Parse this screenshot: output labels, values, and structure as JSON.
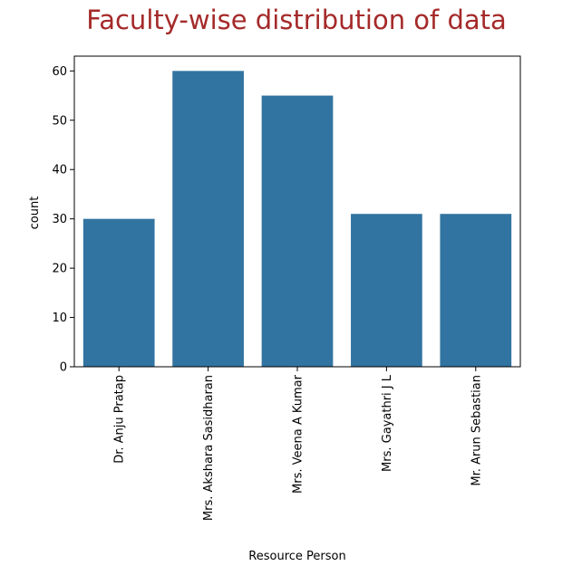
{
  "chart_data": {
    "type": "bar",
    "title": "Faculty-wise distribution of data",
    "xlabel": "Resource Person",
    "ylabel": "count",
    "categories": [
      "Dr. Anju Pratap",
      "Mrs. Akshara Sasidharan",
      "Mrs. Veena A Kumar",
      "Mrs. Gayathri J L",
      "Mr. Arun Sebastian"
    ],
    "values": [
      30,
      60,
      55,
      31,
      31
    ],
    "ylim": [
      0,
      63
    ],
    "yticks": [
      0,
      10,
      20,
      30,
      40,
      50,
      60
    ],
    "grid": false,
    "legend": "none",
    "colors": {
      "bar": "#3274a1",
      "title": "#a52a2a",
      "axis": "#000000"
    }
  }
}
